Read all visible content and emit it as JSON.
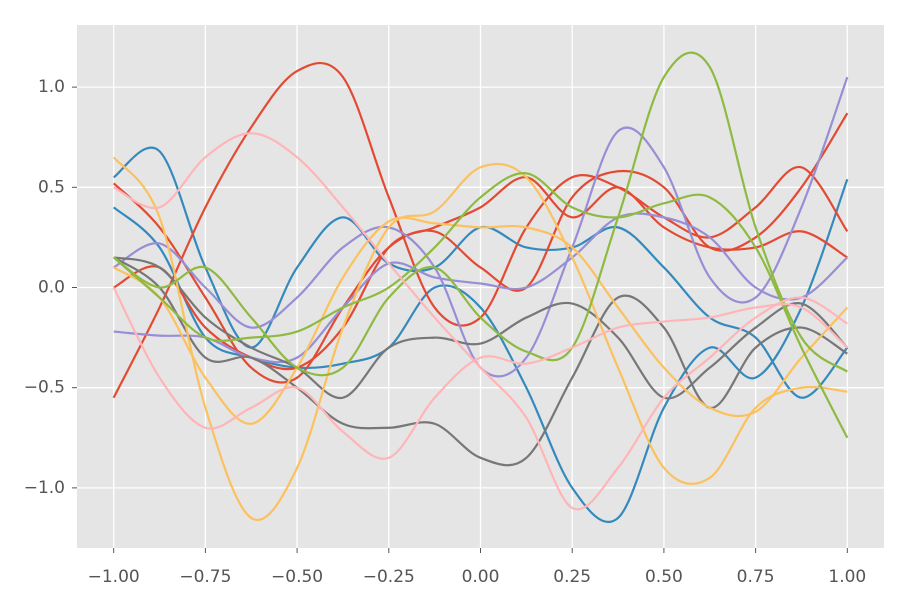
{
  "chart_data": {
    "type": "line",
    "x": [
      -1,
      -0.875,
      -0.75,
      -0.625,
      -0.5,
      -0.375,
      -0.25,
      -0.125,
      0,
      0.125,
      0.25,
      0.375,
      0.5,
      0.625,
      0.75,
      0.875,
      1
    ],
    "xlim": [
      -1.1,
      1.1
    ],
    "ylim": [
      -1.3,
      1.31
    ],
    "grid": true,
    "xticks": [
      {
        "value": -1,
        "label": "−1.00"
      },
      {
        "value": -0.75,
        "label": "−0.75"
      },
      {
        "value": -0.5,
        "label": "−0.50"
      },
      {
        "value": -0.25,
        "label": "−0.25"
      },
      {
        "value": 0,
        "label": "0.00"
      },
      {
        "value": 0.25,
        "label": "0.25"
      },
      {
        "value": 0.5,
        "label": "0.50"
      },
      {
        "value": 0.75,
        "label": "0.75"
      },
      {
        "value": 1,
        "label": "1.00"
      }
    ],
    "yticks": [
      {
        "value": -1,
        "label": "−1.0"
      },
      {
        "value": -0.5,
        "label": "−0.5"
      },
      {
        "value": 0,
        "label": "0.0"
      },
      {
        "value": 0.5,
        "label": "0.5"
      },
      {
        "value": 1,
        "label": "1.0"
      }
    ],
    "series": [
      {
        "color": "#348ABD",
        "values": [
          0.55,
          0.68,
          0.1,
          -0.3,
          0.1,
          0.35,
          0.12,
          0.1,
          0.3,
          0.2,
          0.2,
          0.3,
          0.1,
          -0.15,
          -0.25,
          -0.55,
          -0.3
        ]
      },
      {
        "color": "#348ABD",
        "values": [
          0.4,
          0.2,
          -0.25,
          -0.35,
          -0.4,
          -0.38,
          -0.3,
          0.0,
          -0.1,
          -0.5,
          -1.0,
          -1.15,
          -0.6,
          -0.3,
          -0.45,
          -0.1,
          0.54
        ]
      },
      {
        "color": "#E24A33",
        "values": [
          -0.55,
          -0.1,
          0.4,
          0.8,
          1.08,
          1.05,
          0.45,
          -0.1,
          -0.15,
          0.3,
          0.55,
          0.5,
          0.35,
          0.25,
          0.4,
          0.6,
          0.28
        ]
      },
      {
        "color": "#E24A33",
        "values": [
          0.52,
          0.3,
          -0.05,
          -0.4,
          -0.45,
          -0.1,
          0.2,
          0.28,
          0.1,
          0.0,
          0.45,
          0.58,
          0.5,
          0.2,
          0.25,
          0.5,
          0.87
        ]
      },
      {
        "color": "#E24A33",
        "values": [
          0.0,
          0.1,
          -0.2,
          -0.35,
          -0.4,
          -0.2,
          0.2,
          0.3,
          0.4,
          0.55,
          0.35,
          0.5,
          0.3,
          0.2,
          0.2,
          0.28,
          0.15
        ]
      },
      {
        "color": "#988ED5",
        "values": [
          0.1,
          0.22,
          0.0,
          -0.2,
          -0.05,
          0.2,
          0.3,
          0.1,
          -0.4,
          -0.35,
          0.2,
          0.78,
          0.6,
          0.05,
          -0.05,
          0.4,
          1.05
        ]
      },
      {
        "color": "#988ED5",
        "values": [
          -0.22,
          -0.24,
          -0.25,
          -0.35,
          -0.35,
          -0.1,
          0.12,
          0.05,
          0.02,
          0.0,
          0.15,
          0.35,
          0.35,
          0.25,
          0.0,
          -0.05,
          0.15
        ]
      },
      {
        "color": "#777777",
        "values": [
          0.15,
          0.0,
          -0.35,
          -0.35,
          -0.5,
          -0.68,
          -0.7,
          -0.68,
          -0.85,
          -0.85,
          -0.45,
          -0.05,
          -0.2,
          -0.6,
          -0.3,
          -0.2,
          -0.33
        ]
      },
      {
        "color": "#777777",
        "values": [
          0.15,
          0.1,
          -0.15,
          -0.3,
          -0.4,
          -0.55,
          -0.3,
          -0.25,
          -0.28,
          -0.15,
          -0.08,
          -0.25,
          -0.55,
          -0.4,
          -0.2,
          -0.08,
          -0.3
        ]
      },
      {
        "color": "#FBC15E",
        "values": [
          0.65,
          0.35,
          -0.6,
          -1.15,
          -0.9,
          -0.2,
          0.3,
          0.38,
          0.6,
          0.55,
          0.15,
          -0.4,
          -0.9,
          -0.95,
          -0.6,
          -0.5,
          -0.52
        ]
      },
      {
        "color": "#FBC15E",
        "values": [
          0.1,
          -0.05,
          -0.45,
          -0.68,
          -0.4,
          0.05,
          0.33,
          0.32,
          0.3,
          0.3,
          0.2,
          -0.1,
          -0.4,
          -0.6,
          -0.62,
          -0.35,
          -0.1
        ]
      },
      {
        "color": "#8EBA42",
        "values": [
          0.15,
          -0.05,
          -0.25,
          -0.25,
          -0.22,
          -0.1,
          0.0,
          0.2,
          0.45,
          0.57,
          0.4,
          0.35,
          0.42,
          0.45,
          0.2,
          -0.3,
          -0.75
        ]
      },
      {
        "color": "#8EBA42",
        "values": [
          0.15,
          0.0,
          0.1,
          -0.15,
          -0.4,
          -0.4,
          -0.05,
          0.1,
          -0.15,
          -0.32,
          -0.3,
          0.35,
          1.05,
          1.1,
          0.3,
          -0.25,
          -0.42
        ]
      },
      {
        "color": "#FFB5B8",
        "values": [
          0.5,
          0.4,
          0.65,
          0.77,
          0.65,
          0.4,
          0.12,
          -0.15,
          -0.4,
          -0.65,
          -1.1,
          -0.9,
          -0.55,
          -0.35,
          -0.15,
          -0.05,
          -0.18
        ]
      },
      {
        "color": "#FFB5B8",
        "values": [
          0.0,
          -0.45,
          -0.7,
          -0.6,
          -0.5,
          -0.72,
          -0.85,
          -0.55,
          -0.35,
          -0.38,
          -0.3,
          -0.2,
          -0.17,
          -0.15,
          -0.1,
          -0.1,
          -0.3
        ]
      }
    ]
  }
}
